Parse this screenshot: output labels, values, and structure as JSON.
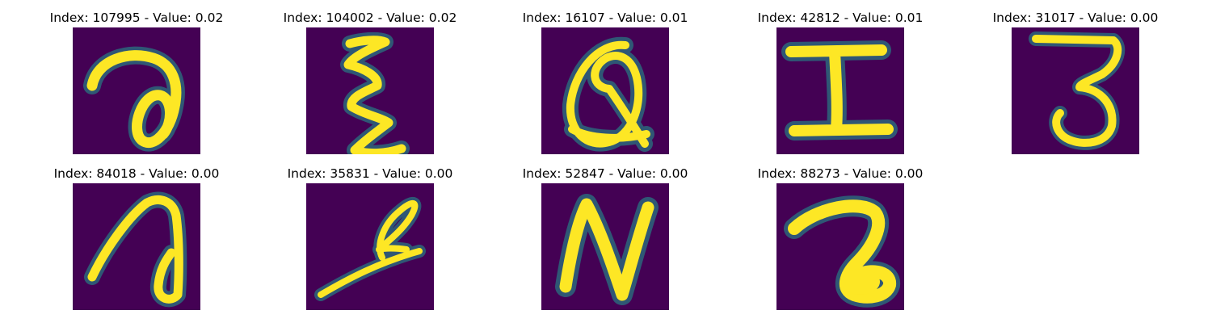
{
  "figure": {
    "panels": [
      {
        "index": "107995",
        "value": "0.02",
        "title": "Index: 107995 - Value: 0.02",
        "glyph_description": "handwritten character resembling a '7' with a loop at the bottom",
        "colors": {
          "background": "#440154",
          "foreground": "#fde725",
          "edge": "#21918c"
        }
      },
      {
        "index": "104002",
        "value": "0.02",
        "title": "Index: 104002 - Value: 0.02",
        "glyph_description": "handwritten zigzag character resembling 'E' / 'ε'",
        "colors": {
          "background": "#440154",
          "foreground": "#fde725",
          "edge": "#21918c"
        }
      },
      {
        "index": "16107",
        "value": "0.01",
        "title": "Index: 16107 - Value: 0.01",
        "glyph_description": "handwritten character resembling 'Q' / '@'",
        "colors": {
          "background": "#440154",
          "foreground": "#fde725",
          "edge": "#21918c"
        }
      },
      {
        "index": "42812",
        "value": "0.01",
        "title": "Index: 42812 - Value: 0.01",
        "glyph_description": "handwritten capital 'I' with serifs",
        "colors": {
          "background": "#440154",
          "foreground": "#fde725",
          "edge": "#21918c"
        }
      },
      {
        "index": "31017",
        "value": "0.00",
        "title": "Index: 31017 - Value: 0.00",
        "glyph_description": "handwritten digit '3' with flat top",
        "colors": {
          "background": "#440154",
          "foreground": "#fde725",
          "edge": "#21918c"
        }
      },
      {
        "index": "84018",
        "value": "0.00",
        "title": "Index: 84018 - Value: 0.00",
        "glyph_description": "handwritten character resembling '7' / 'a' with a bottom loop",
        "colors": {
          "background": "#440154",
          "foreground": "#fde725",
          "edge": "#21918c"
        }
      },
      {
        "index": "35831",
        "value": "0.00",
        "title": "Index: 35831 - Value: 0.00",
        "glyph_description": "handwritten slanted stroke with a loop resembling 'a' / 'l'",
        "colors": {
          "background": "#440154",
          "foreground": "#fde725",
          "edge": "#21918c"
        }
      },
      {
        "index": "52847",
        "value": "0.00",
        "title": "Index: 52847 - Value: 0.00",
        "glyph_description": "handwritten capital 'N'",
        "colors": {
          "background": "#440154",
          "foreground": "#fde725",
          "edge": "#21918c"
        }
      },
      {
        "index": "88273",
        "value": "0.00",
        "title": "Index: 88273 - Value: 0.00",
        "glyph_description": "handwritten '7' / 'a' shape with a thick filled bottom blob",
        "colors": {
          "background": "#440154",
          "foreground": "#fde725",
          "edge": "#21918c"
        }
      }
    ]
  }
}
